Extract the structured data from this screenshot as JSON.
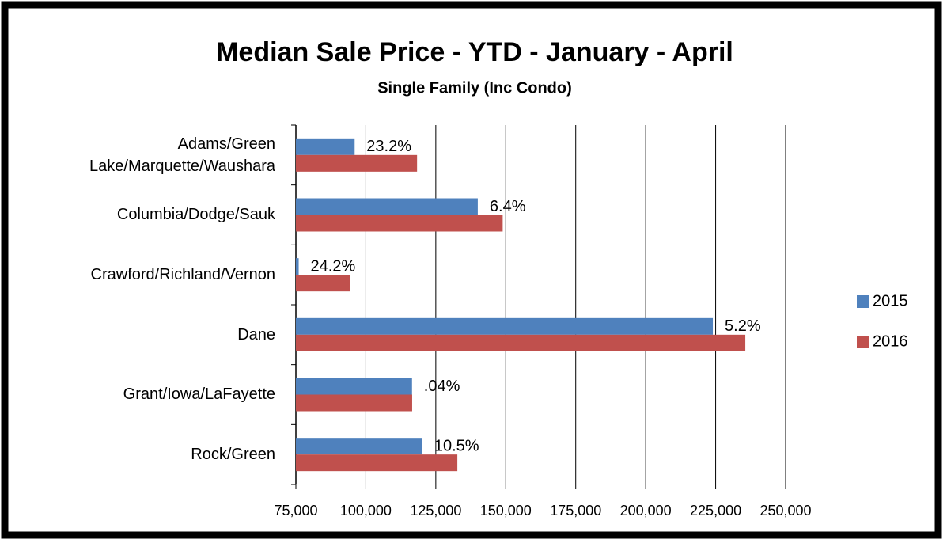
{
  "chart_data": {
    "type": "hbar",
    "title": "Median Sale Price - YTD - January - April",
    "subtitle": "Single Family (Inc Condo)",
    "categories": [
      "Adams/Green Lake/Marquette/Waushara",
      "Columbia/Dodge/Sauk",
      "Crawford/Richland/Vernon",
      "Dane",
      "Grant/Iowa/LaFayette",
      "Rock/Green"
    ],
    "series": [
      {
        "name": "2015",
        "color": "#4f81bd",
        "values": [
          96000,
          140000,
          76000,
          224000,
          116500,
          120200
        ]
      },
      {
        "name": "2016",
        "color": "#c0504d",
        "values": [
          118300,
          148900,
          94400,
          235600,
          116550,
          132700
        ]
      }
    ],
    "annotations": [
      "23.2%",
      "6.4%",
      "24.2%",
      "5.2%",
      ".04%",
      "10.5%"
    ],
    "xlim": [
      75000,
      250000
    ],
    "xticks": [
      {
        "value": 75000,
        "label": "75,000"
      },
      {
        "value": 100000,
        "label": "100,000"
      },
      {
        "value": 125000,
        "label": "125,000"
      },
      {
        "value": 150000,
        "label": "150,000"
      },
      {
        "value": 175000,
        "label": "175,000"
      },
      {
        "value": 200000,
        "label": "200,000"
      },
      {
        "value": 225000,
        "label": "225,000"
      },
      {
        "value": 250000,
        "label": "250,000"
      }
    ],
    "grid": true,
    "legend": "right"
  }
}
